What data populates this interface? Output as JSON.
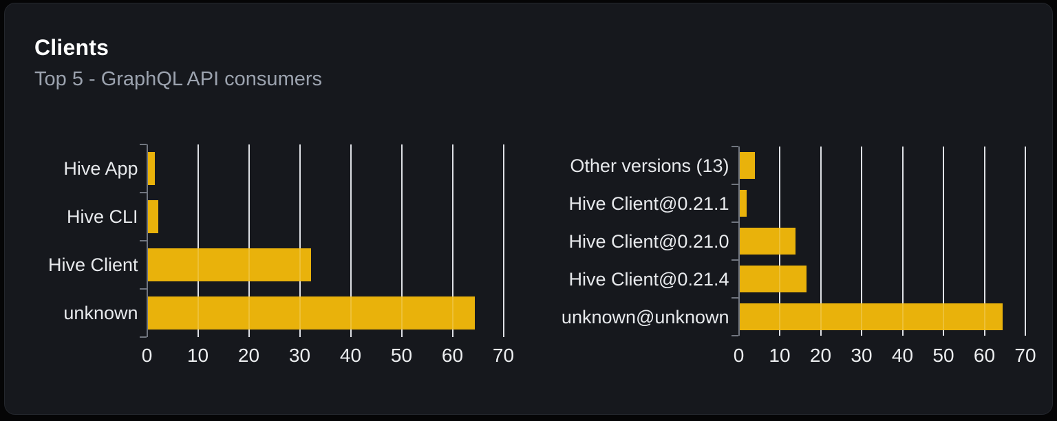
{
  "card": {
    "title": "Clients",
    "subtitle": "Top 5 - GraphQL API consumers"
  },
  "colors": {
    "page_bg": "#050506",
    "card_bg": "#16181d",
    "card_border": "#24272d",
    "bar": "#e9b20b",
    "grid": "#d8dbe1",
    "grid_over_bar": "rgba(255,255,255,0.18)",
    "axis": "#717680",
    "title": "#ffffff",
    "subtitle": "#9ca3af",
    "category_label": "#e7e9ec",
    "tick_label": "#eceef0"
  },
  "chart_data": [
    {
      "type": "bar",
      "orientation": "horizontal",
      "name": "clients-by-name",
      "categories": [
        "Hive App",
        "Hive CLI",
        "Hive Client",
        "unknown"
      ],
      "values": [
        1.4,
        2.1,
        32.1,
        64.3
      ],
      "xlim": [
        0,
        70
      ],
      "xticks": [
        0,
        10,
        20,
        30,
        40,
        50,
        60,
        70
      ],
      "grid": true,
      "legend": "none",
      "title": "",
      "xlabel": "",
      "ylabel": ""
    },
    {
      "type": "bar",
      "orientation": "horizontal",
      "name": "clients-by-version",
      "categories": [
        "Other versions (13)",
        "Hive Client@0.21.1",
        "Hive Client@0.21.0",
        "Hive Client@0.21.4",
        "unknown@unknown"
      ],
      "values": [
        3.8,
        1.8,
        13.7,
        16.4,
        64.3
      ],
      "xlim": [
        0,
        70
      ],
      "xticks": [
        0,
        10,
        20,
        30,
        40,
        50,
        60,
        70
      ],
      "grid": true,
      "legend": "none",
      "title": "",
      "xlabel": "",
      "ylabel": ""
    }
  ]
}
